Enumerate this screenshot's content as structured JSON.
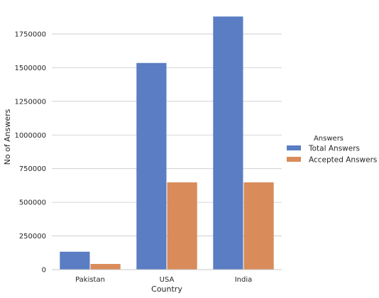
{
  "chart_data": {
    "type": "bar",
    "title": "",
    "xlabel": "Country",
    "ylabel": "No of Answers",
    "categories": [
      "Pakistan",
      "USA",
      "India"
    ],
    "series": [
      {
        "name": "Total Answers",
        "values": [
          133000,
          1535000,
          1880000
        ],
        "color": "#5a7dc4"
      },
      {
        "name": "Accepted Answers",
        "values": [
          42000,
          648000,
          648000
        ],
        "color": "#d98b5a"
      }
    ],
    "ylim": [
      0,
      1950000
    ],
    "yticks": [
      0,
      250000,
      500000,
      750000,
      1000000,
      1250000,
      1500000,
      1750000
    ],
    "ytick_labels": [
      "0",
      "250000",
      "500000",
      "750000",
      "1000000",
      "1250000",
      "1500000",
      "1750000"
    ],
    "legend": {
      "title": "Answers",
      "placement": "right"
    },
    "grid": "horizontal"
  }
}
